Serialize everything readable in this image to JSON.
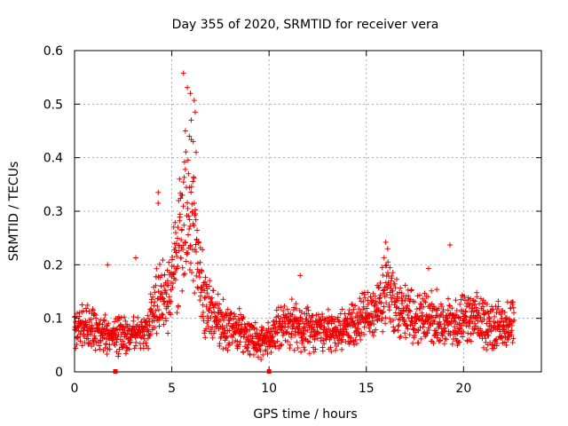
{
  "chart_data": {
    "type": "scatter",
    "title": "Day 355 of 2020, SRMTID for receiver vera",
    "xlabel": "GPS time / hours",
    "ylabel": "SRMTID / TECUs",
    "xlim": [
      0,
      24
    ],
    "ylim": [
      0,
      0.6
    ],
    "xticks": [
      0,
      5,
      10,
      15,
      20
    ],
    "yticks": [
      0,
      0.1,
      0.2,
      0.3,
      0.4,
      0.5,
      0.6
    ],
    "ytick_labels": [
      "0",
      "0.1",
      "0.2",
      "0.3",
      "0.4",
      "0.5",
      "0.6"
    ],
    "grid": true,
    "marker": "+",
    "colors": {
      "points": "#ee0000",
      "grid": "#9a9a9a",
      "axes": "#000000"
    },
    "gap_markers": [
      2.1,
      10.0
    ],
    "series": [
      {
        "name": "SRMTID",
        "baseline": [
          [
            0.0,
            0.085
          ],
          [
            1.0,
            0.082
          ],
          [
            1.5,
            0.07
          ],
          [
            2.5,
            0.068
          ],
          [
            3.5,
            0.075
          ],
          [
            4.0,
            0.11
          ],
          [
            4.4,
            0.15
          ],
          [
            4.8,
            0.14
          ],
          [
            5.2,
            0.2
          ],
          [
            5.6,
            0.27
          ],
          [
            6.0,
            0.3
          ],
          [
            6.3,
            0.22
          ],
          [
            6.7,
            0.13
          ],
          [
            7.2,
            0.1
          ],
          [
            8.0,
            0.08
          ],
          [
            9.0,
            0.07
          ],
          [
            9.9,
            0.055
          ],
          [
            10.5,
            0.09
          ],
          [
            11.5,
            0.085
          ],
          [
            12.5,
            0.075
          ],
          [
            13.5,
            0.075
          ],
          [
            14.5,
            0.09
          ],
          [
            15.3,
            0.11
          ],
          [
            15.8,
            0.13
          ],
          [
            16.1,
            0.17
          ],
          [
            16.5,
            0.12
          ],
          [
            17.5,
            0.1
          ],
          [
            18.5,
            0.1
          ],
          [
            19.5,
            0.09
          ],
          [
            20.5,
            0.1
          ],
          [
            21.5,
            0.085
          ],
          [
            22.6,
            0.09
          ]
        ],
        "extremes": [
          [
            5.6,
            0.558
          ],
          [
            5.8,
            0.531
          ],
          [
            5.95,
            0.52
          ],
          [
            6.15,
            0.507
          ],
          [
            6.2,
            0.485
          ],
          [
            6.0,
            0.47
          ],
          [
            5.7,
            0.45
          ],
          [
            5.9,
            0.44
          ],
          [
            6.1,
            0.43
          ],
          [
            6.25,
            0.41
          ],
          [
            4.3,
            0.335
          ],
          [
            4.3,
            0.315
          ],
          [
            5.4,
            0.36
          ],
          [
            5.5,
            0.33
          ],
          [
            5.2,
            0.26
          ],
          [
            16.0,
            0.242
          ],
          [
            16.1,
            0.23
          ],
          [
            19.3,
            0.237
          ],
          [
            3.15,
            0.213
          ],
          [
            1.7,
            0.2
          ],
          [
            18.2,
            0.193
          ],
          [
            11.6,
            0.18
          ]
        ]
      }
    ]
  }
}
